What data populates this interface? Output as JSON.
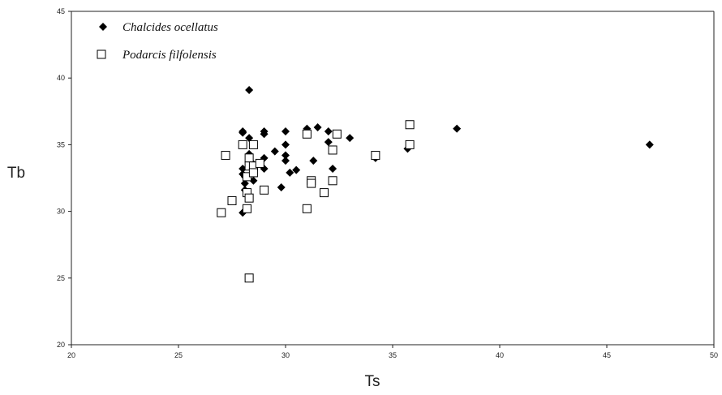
{
  "chart_data": {
    "type": "scatter",
    "xlabel": "Ts",
    "ylabel": "Tb",
    "xlim": [
      20,
      50
    ],
    "ylim": [
      20,
      45
    ],
    "x_ticks": [
      "20",
      "25",
      "30",
      "35",
      "40",
      "45",
      "50"
    ],
    "y_ticks": [
      "20",
      "25",
      "30",
      "35",
      "40",
      "45"
    ],
    "grid": false,
    "legend_position": "top-left",
    "series": [
      {
        "name": "Chalcides ocellatus",
        "marker": "diamond-filled",
        "color": "#000000",
        "points": [
          [
            28,
            36
          ],
          [
            28,
            35.9
          ],
          [
            28,
            33.2
          ],
          [
            28,
            32.8
          ],
          [
            28.1,
            32.6
          ],
          [
            28.1,
            32.1
          ],
          [
            28.1,
            31.6
          ],
          [
            28.2,
            31.3
          ],
          [
            28,
            29.9
          ],
          [
            28.3,
            35.5
          ],
          [
            28.3,
            34.3
          ],
          [
            28.4,
            33.7
          ],
          [
            28.3,
            39.1
          ],
          [
            28.5,
            32.3
          ],
          [
            29,
            36
          ],
          [
            29,
            35.8
          ],
          [
            29,
            34
          ],
          [
            29,
            33.2
          ],
          [
            29.5,
            34.5
          ],
          [
            30,
            36
          ],
          [
            30,
            35
          ],
          [
            30,
            34.2
          ],
          [
            30,
            33.8
          ],
          [
            29.8,
            31.8
          ],
          [
            30.2,
            32.9
          ],
          [
            30.5,
            33.1
          ],
          [
            31,
            36.2
          ],
          [
            31.3,
            33.8
          ],
          [
            31.5,
            36.3
          ],
          [
            32,
            36
          ],
          [
            32,
            35.2
          ],
          [
            32.2,
            33.2
          ],
          [
            33,
            35.5
          ],
          [
            34.2,
            34
          ],
          [
            35.7,
            34.7
          ],
          [
            38,
            36.2
          ],
          [
            47,
            35
          ]
        ]
      },
      {
        "name": "Podarcis filfolensis",
        "marker": "square-open",
        "color": "#000000",
        "points": [
          [
            27,
            29.9
          ],
          [
            27.2,
            34.2
          ],
          [
            27.5,
            30.8
          ],
          [
            28,
            35
          ],
          [
            28.2,
            32.6
          ],
          [
            28.2,
            31.4
          ],
          [
            28.2,
            30.2
          ],
          [
            28.3,
            34
          ],
          [
            28.3,
            33.4
          ],
          [
            28.3,
            31
          ],
          [
            28.3,
            25
          ],
          [
            28.5,
            35
          ],
          [
            28.5,
            33.4
          ],
          [
            28.5,
            32.9
          ],
          [
            28.8,
            33.6
          ],
          [
            29,
            31.6
          ],
          [
            31,
            35.8
          ],
          [
            31,
            30.2
          ],
          [
            31.2,
            32.3
          ],
          [
            31.2,
            32.1
          ],
          [
            31.8,
            31.4
          ],
          [
            32.2,
            34.6
          ],
          [
            32.2,
            32.3
          ],
          [
            32.4,
            35.8
          ],
          [
            34.2,
            34.2
          ],
          [
            35.8,
            36.5
          ],
          [
            35.8,
            35
          ]
        ]
      }
    ]
  }
}
